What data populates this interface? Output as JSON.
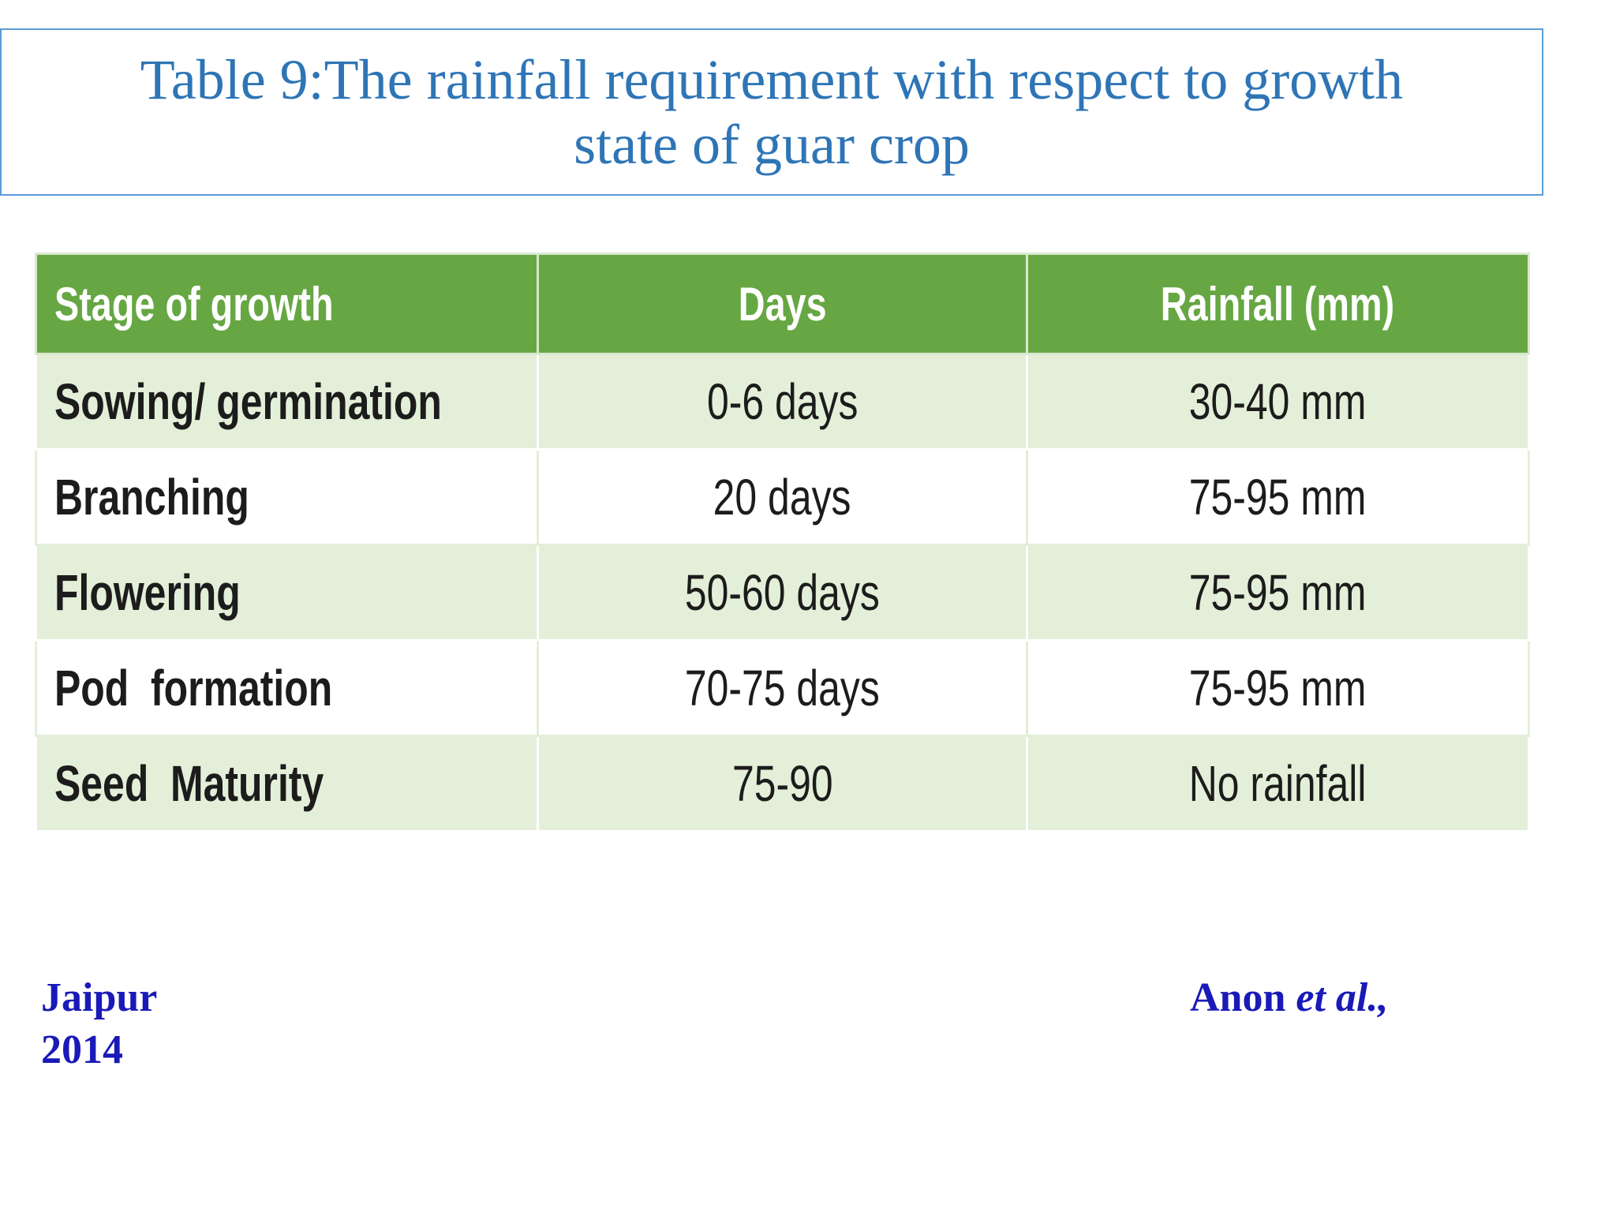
{
  "title": {
    "line1": "Table 9:The rainfall requirement with respect to growth",
    "line2": "state of guar crop"
  },
  "table": {
    "headers": [
      "Stage of growth",
      "Days",
      "Rainfall (mm)"
    ],
    "rows": [
      [
        "Sowing/ germination",
        "0-6 days",
        "30-40 mm"
      ],
      [
        "Branching",
        "20 days",
        "75-95 mm"
      ],
      [
        "Flowering",
        "50-60 days",
        "75-95 mm"
      ],
      [
        "Pod  formation",
        "70-75 days",
        "75-95 mm"
      ],
      [
        "Seed  Maturity",
        "75-90",
        "No rainfall"
      ]
    ]
  },
  "footer": {
    "location": "Jaipur",
    "year": "2014",
    "author": "Anon",
    "author_suffix": "et al.,"
  },
  "colors": {
    "title_text": "#2e75b6",
    "title_border": "#5b9bd5",
    "header_bg": "#66a743",
    "row_alt_bg": "#e3efd8",
    "footer_text": "#1a1ab8"
  }
}
